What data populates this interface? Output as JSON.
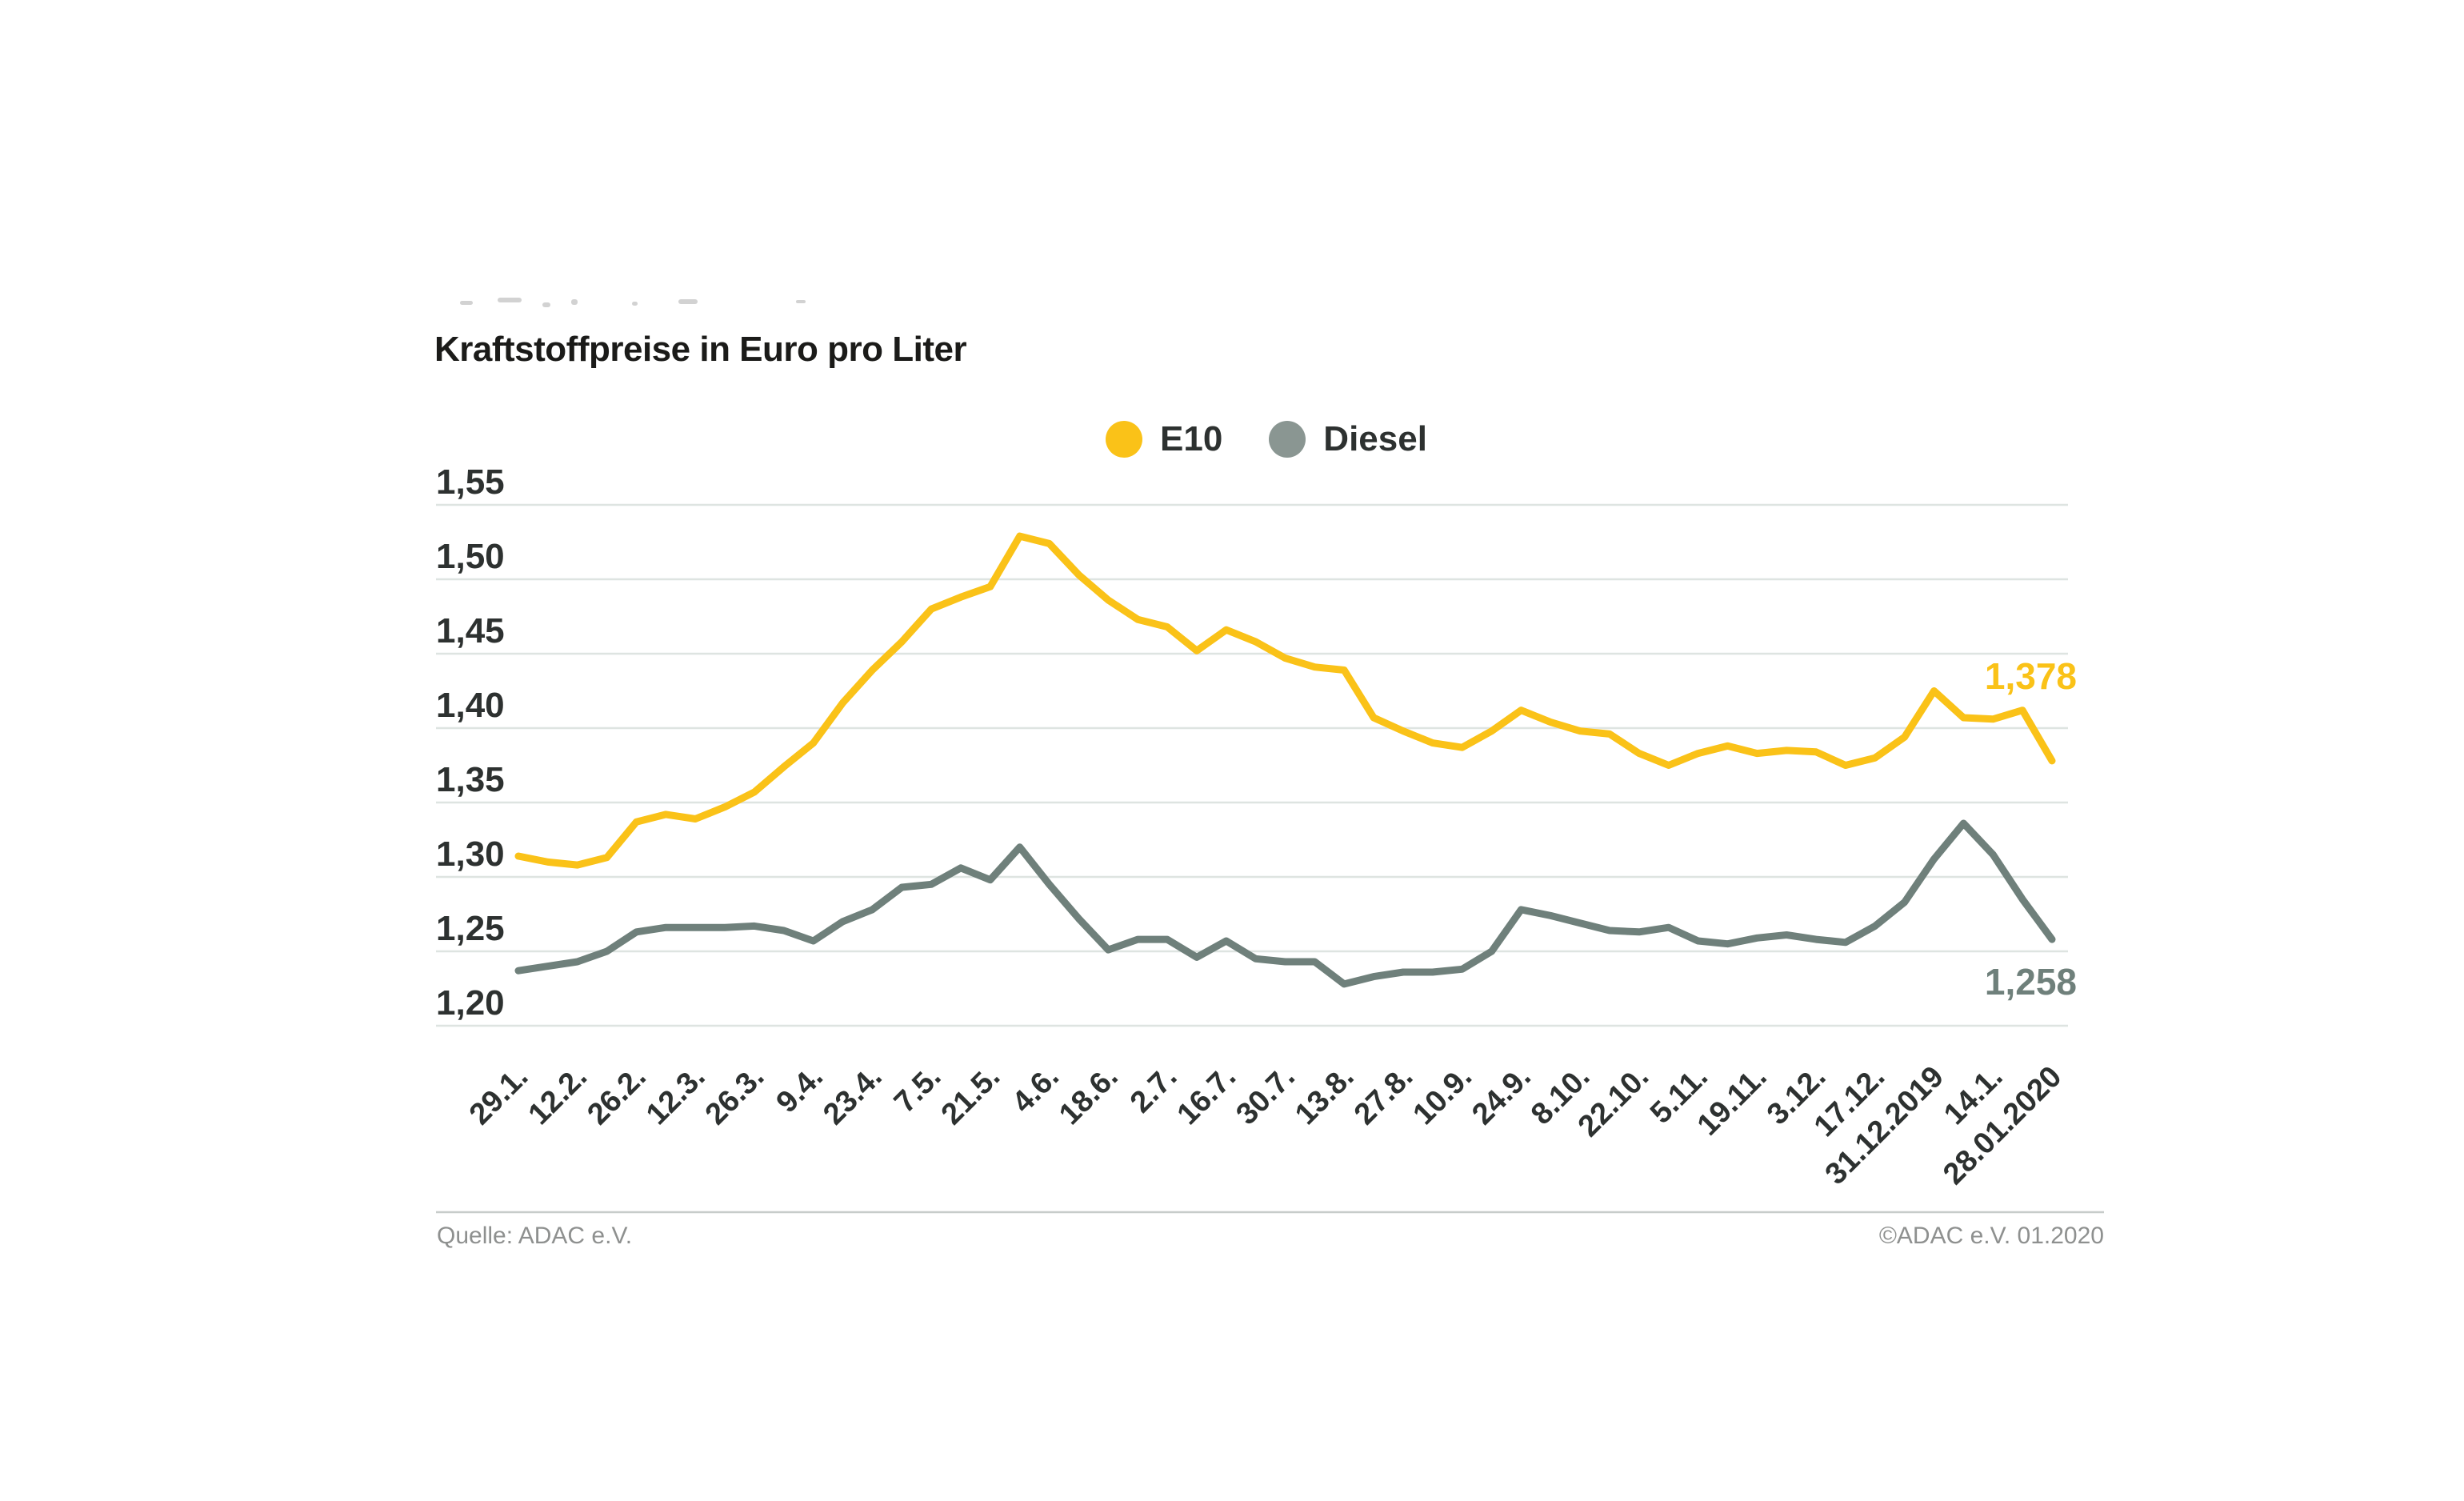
{
  "header": {
    "title": "Kraftstoffpreise in Euro pro Liter"
  },
  "legend": {
    "items": [
      {
        "label": "E10",
        "dot_color": "#FAC218"
      },
      {
        "label": "Diesel",
        "dot_color": "#8A9692"
      }
    ]
  },
  "chart_data": {
    "type": "line",
    "title": "Kraftstoffpreise in Euro pro Liter",
    "unit": "Euro pro Liter",
    "ylim": [
      1.2,
      1.55
    ],
    "yticks": [
      1.55,
      1.5,
      1.45,
      1.4,
      1.35,
      1.3,
      1.25,
      1.2
    ],
    "ytick_labels": [
      "1,55",
      "1,50",
      "1,45",
      "1,40",
      "1,35",
      "1,30",
      "1,25",
      "1,20"
    ],
    "x_labels": [
      "29.1.",
      "12.2.",
      "26.2.",
      "12.3.",
      "26.3.",
      "9.4.",
      "23.4.",
      "7.5.",
      "21.5.",
      "4.6.",
      "18.6.",
      "2.7.",
      "16.7.",
      "30.7.",
      "13.8.",
      "27.8.",
      "10.9.",
      "24.9.",
      "8.10.",
      "22.10.",
      "5.11.",
      "19.11.",
      "3.12.",
      "17.12.",
      "31.12.2019",
      "14.1.",
      "28.01.2020"
    ],
    "points_per_label": 2,
    "grid": true,
    "legend_position": "top-center",
    "series": [
      {
        "name": "E10",
        "color": "#FAC218",
        "end_label": "1,378",
        "values": [
          1.314,
          1.31,
          1.308,
          1.313,
          1.337,
          1.342,
          1.339,
          1.347,
          1.357,
          1.374,
          1.39,
          1.417,
          1.439,
          1.458,
          1.48,
          1.488,
          1.495,
          1.529,
          1.524,
          1.503,
          1.486,
          1.473,
          1.468,
          1.452,
          1.466,
          1.458,
          1.447,
          1.441,
          1.439,
          1.407,
          1.398,
          1.39,
          1.387,
          1.398,
          1.412,
          1.404,
          1.398,
          1.396,
          1.383,
          1.375,
          1.383,
          1.388,
          1.383,
          1.385,
          1.384,
          1.375,
          1.38,
          1.394,
          1.425,
          1.407,
          1.406,
          1.412,
          1.378
        ]
      },
      {
        "name": "Diesel",
        "color": "#6F807B",
        "end_label": "1,258",
        "values": [
          1.237,
          1.24,
          1.243,
          1.25,
          1.263,
          1.266,
          1.266,
          1.266,
          1.267,
          1.264,
          1.257,
          1.27,
          1.278,
          1.293,
          1.295,
          1.306,
          1.298,
          1.32,
          1.295,
          1.272,
          1.251,
          1.258,
          1.258,
          1.246,
          1.257,
          1.245,
          1.243,
          1.243,
          1.228,
          1.233,
          1.236,
          1.236,
          1.238,
          1.25,
          1.278,
          1.274,
          1.269,
          1.264,
          1.263,
          1.266,
          1.257,
          1.255,
          1.259,
          1.261,
          1.258,
          1.256,
          1.267,
          1.283,
          1.312,
          1.336,
          1.315,
          1.285,
          1.258
        ]
      }
    ]
  },
  "footer": {
    "source": "Quelle: ADAC e.V.",
    "copyright": "©ADAC e.V.  01.2020"
  },
  "colors": {
    "grid": "#DEE4E1",
    "axis_text": "#2D3130",
    "separator": "#C7CCCA",
    "footer_text": "#8E908F"
  }
}
